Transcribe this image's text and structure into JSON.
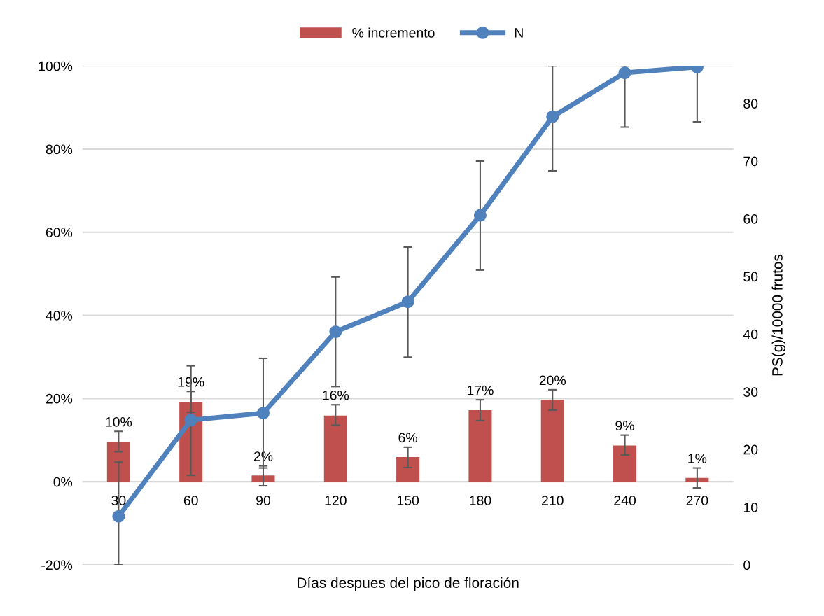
{
  "chart_data": {
    "type": "bar",
    "xlabel": "Días despues del pico de floración",
    "y2label": "PS(g)/10000 frutos",
    "categories": [
      "30",
      "60",
      "90",
      "120",
      "150",
      "180",
      "210",
      "240",
      "270"
    ],
    "series": [
      {
        "name": "% incremento",
        "color": "#c0504d",
        "values": [
          9.5,
          19.1,
          1.5,
          15.9,
          5.9,
          17.2,
          19.7,
          8.7,
          0.9
        ],
        "errors": [
          [
            7.2,
            12.1
          ],
          [
            16.7,
            21.7
          ],
          [
            3.3,
            3.8
          ],
          [
            13.6,
            18.5
          ],
          [
            3.4,
            8.3
          ],
          [
            14.7,
            19.7
          ],
          [
            17.2,
            22.1
          ],
          [
            6.4,
            11.2
          ],
          [
            -1.5,
            3.3
          ]
        ],
        "value_labels": [
          "10%",
          "19%",
          "2%",
          "16%",
          "6%",
          "17%",
          "20%",
          "9%",
          "1%"
        ]
      },
      {
        "name": "N",
        "type": "line",
        "axis": "y2",
        "color": "#4f81bd",
        "marker": "circle",
        "line_style": "solid",
        "values": [
          8.4,
          25.1,
          26.3,
          40.4,
          45.6,
          60.6,
          77.7,
          85.3,
          86.3
        ],
        "errors": [
          [
            0,
            17.8
          ],
          [
            15.5,
            34.5
          ],
          [
            13.7,
            35.8
          ],
          [
            30.9,
            49.9
          ],
          [
            36.0,
            55.1
          ],
          [
            51.1,
            70.0
          ],
          [
            68.3,
            86.5
          ],
          [
            75.9,
            86.5
          ],
          [
            76.8,
            86.5
          ]
        ]
      }
    ],
    "ylim": [
      -20,
      100
    ],
    "yticks": [
      {
        "value": -20,
        "label": "-20%"
      },
      {
        "value": 0,
        "label": "0%"
      },
      {
        "value": 20,
        "label": "20%"
      },
      {
        "value": 40,
        "label": "40%"
      },
      {
        "value": 60,
        "label": "60%"
      },
      {
        "value": 80,
        "label": "80%"
      },
      {
        "value": 100,
        "label": "100%"
      }
    ],
    "y2lim": [
      0,
      86.5
    ],
    "y2ticks": [
      0,
      10,
      20,
      30,
      40,
      50,
      60,
      70,
      80
    ],
    "grid": "y",
    "legend": "top"
  }
}
